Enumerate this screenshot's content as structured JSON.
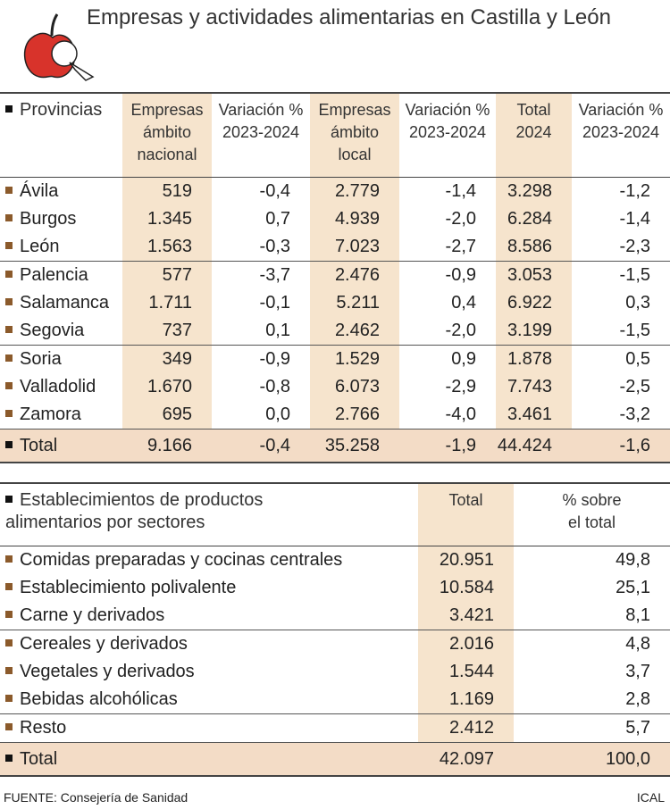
{
  "header": {
    "title": "Empresas y actividades alimentarias en Castilla y León"
  },
  "table1": {
    "columns": [
      "Provincias",
      "Empresas\námbito\nnacional",
      "Variación %\n2023-2024",
      "Empresas\námbito\nlocal",
      "Variación %\n2023-2024",
      "Total\n2024",
      "Variación %\n2023-2024"
    ],
    "rows": [
      [
        "Ávila",
        "519",
        "-0,4",
        "2.779",
        "-1,4",
        "3.298",
        "-1,2"
      ],
      [
        "Burgos",
        "1.345",
        "0,7",
        "4.939",
        "-2,0",
        "6.284",
        "-1,4"
      ],
      [
        "León",
        "1.563",
        "-0,3",
        "7.023",
        "-2,7",
        "8.586",
        "-2,3"
      ],
      [
        "Palencia",
        "577",
        "-3,7",
        "2.476",
        "-0,9",
        "3.053",
        "-1,5"
      ],
      [
        "Salamanca",
        "1.711",
        "-0,1",
        "5.211",
        "0,4",
        "6.922",
        "0,3"
      ],
      [
        "Segovia",
        "737",
        "0,1",
        "2.462",
        "-2,0",
        "3.199",
        "-1,5"
      ],
      [
        "Soria",
        "349",
        "-0,9",
        "1.529",
        "0,9",
        "1.878",
        "0,5"
      ],
      [
        "Valladolid",
        "1.670",
        "-0,8",
        "6.073",
        "-2,9",
        "7.743",
        "-2,5"
      ],
      [
        "Zamora",
        "695",
        "0,0",
        "2.766",
        "-4,0",
        "3.461",
        "-3,2"
      ]
    ],
    "total": [
      "Total",
      "9.166",
      "-0,4",
      "35.258",
      "-1,9",
      "44.424",
      "-1,6"
    ]
  },
  "table2": {
    "columns": [
      "Establecimientos de productos\nalimentarios por sectores",
      "Total",
      "% sobre\nel total"
    ],
    "rows": [
      [
        "Comidas preparadas y cocinas centrales",
        "20.951",
        "49,8"
      ],
      [
        "Establecimiento polivalente",
        "10.584",
        "25,1"
      ],
      [
        "Carne y derivados",
        "3.421",
        "8,1"
      ],
      [
        "Cereales y derivados",
        "2.016",
        "4,8"
      ],
      [
        "Vegetales y derivados",
        "1.544",
        "3,7"
      ],
      [
        "Bebidas alcohólicas",
        "1.169",
        "2,8"
      ],
      [
        "Resto",
        "2.412",
        "5,7"
      ]
    ],
    "total": [
      "Total",
      "42.097",
      "100,0"
    ]
  },
  "footer": {
    "source": "FUENTE: Consejería de Sanidad",
    "credit": "ICAL"
  }
}
